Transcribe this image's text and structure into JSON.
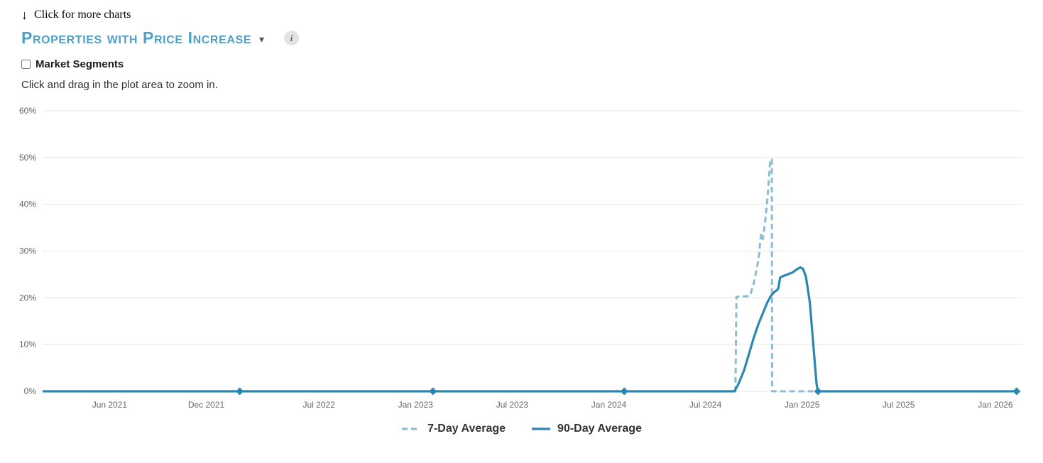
{
  "header": {
    "more_charts_label": "Click for more charts",
    "title": "Properties with Price Increase",
    "info_label": "i"
  },
  "controls": {
    "market_segments_label": "Market Segments",
    "market_segments_checked": false,
    "hint": "Click and drag in the plot area to zoom in."
  },
  "colors": {
    "title_accent": "#4fa0c7",
    "series_7day": "#8cbcd3",
    "series_90day": "#2b87b2",
    "grid": "#e6e6e6",
    "axis_text": "#666666",
    "legend_text": "#333333"
  },
  "chart_data": {
    "type": "line",
    "title": "Properties with Price Increase",
    "xlabel": "",
    "ylabel": "",
    "grid": true,
    "legend_position": "bottom",
    "x_range": [
      2021.07,
      2026.14
    ],
    "ylim": [
      0,
      60
    ],
    "yticks": [
      {
        "value": 0,
        "label": "0%"
      },
      {
        "value": 10,
        "label": "10%"
      },
      {
        "value": 20,
        "label": "20%"
      },
      {
        "value": 30,
        "label": "30%"
      },
      {
        "value": 40,
        "label": "40%"
      },
      {
        "value": 50,
        "label": "50%"
      },
      {
        "value": 60,
        "label": "60%"
      }
    ],
    "xticks": [
      {
        "value": 2021.417,
        "label": "Jun 2021"
      },
      {
        "value": 2021.917,
        "label": "Dec 2021"
      },
      {
        "value": 2022.5,
        "label": "Jul 2022"
      },
      {
        "value": 2023.0,
        "label": "Jan 2023"
      },
      {
        "value": 2023.5,
        "label": "Jul 2023"
      },
      {
        "value": 2024.0,
        "label": "Jan 2024"
      },
      {
        "value": 2024.5,
        "label": "Jul 2024"
      },
      {
        "value": 2025.0,
        "label": "Jan 2025"
      },
      {
        "value": 2025.5,
        "label": "Jul 2025"
      },
      {
        "value": 2026.0,
        "label": "Jan 2026"
      }
    ],
    "series": [
      {
        "name": "7-Day Average",
        "color": "#8cbcd3",
        "dash": "8 5",
        "width": 3,
        "points": [
          [
            2021.07,
            0
          ],
          [
            2024.655,
            0
          ],
          [
            2024.66,
            20.2
          ],
          [
            2024.705,
            20.3
          ],
          [
            2024.73,
            20.4
          ],
          [
            2024.748,
            22.8
          ],
          [
            2024.762,
            25.5
          ],
          [
            2024.775,
            28.5
          ],
          [
            2024.788,
            33.7
          ],
          [
            2024.797,
            32.6
          ],
          [
            2024.81,
            36.8
          ],
          [
            2024.822,
            42.0
          ],
          [
            2024.835,
            49.6
          ],
          [
            2024.843,
            49.6
          ],
          [
            2024.845,
            0
          ],
          [
            2026.11,
            0
          ]
        ],
        "markers": []
      },
      {
        "name": "90-Day Average",
        "color": "#2b87b2",
        "dash": null,
        "width": 3.2,
        "points": [
          [
            2021.07,
            0
          ],
          [
            2024.65,
            0
          ],
          [
            2024.67,
            1.5
          ],
          [
            2024.7,
            4.5
          ],
          [
            2024.725,
            8.0
          ],
          [
            2024.75,
            11.5
          ],
          [
            2024.775,
            14.5
          ],
          [
            2024.8,
            17.0
          ],
          [
            2024.82,
            19.0
          ],
          [
            2024.84,
            20.5
          ],
          [
            2024.858,
            21.3
          ],
          [
            2024.872,
            21.7
          ],
          [
            2024.878,
            22.2
          ],
          [
            2024.886,
            24.3
          ],
          [
            2024.9,
            24.6
          ],
          [
            2024.925,
            25.0
          ],
          [
            2024.95,
            25.4
          ],
          [
            2024.97,
            26.0
          ],
          [
            2024.99,
            26.5
          ],
          [
            2025.005,
            26.2
          ],
          [
            2025.02,
            24.5
          ],
          [
            2025.04,
            19.0
          ],
          [
            2025.06,
            9.0
          ],
          [
            2025.075,
            1.5
          ],
          [
            2025.082,
            0
          ],
          [
            2026.11,
            0
          ]
        ],
        "markers": [
          [
            2022.09,
            0
          ],
          [
            2023.09,
            0
          ],
          [
            2024.08,
            0
          ],
          [
            2025.082,
            0
          ],
          [
            2026.11,
            0
          ]
        ]
      }
    ]
  }
}
